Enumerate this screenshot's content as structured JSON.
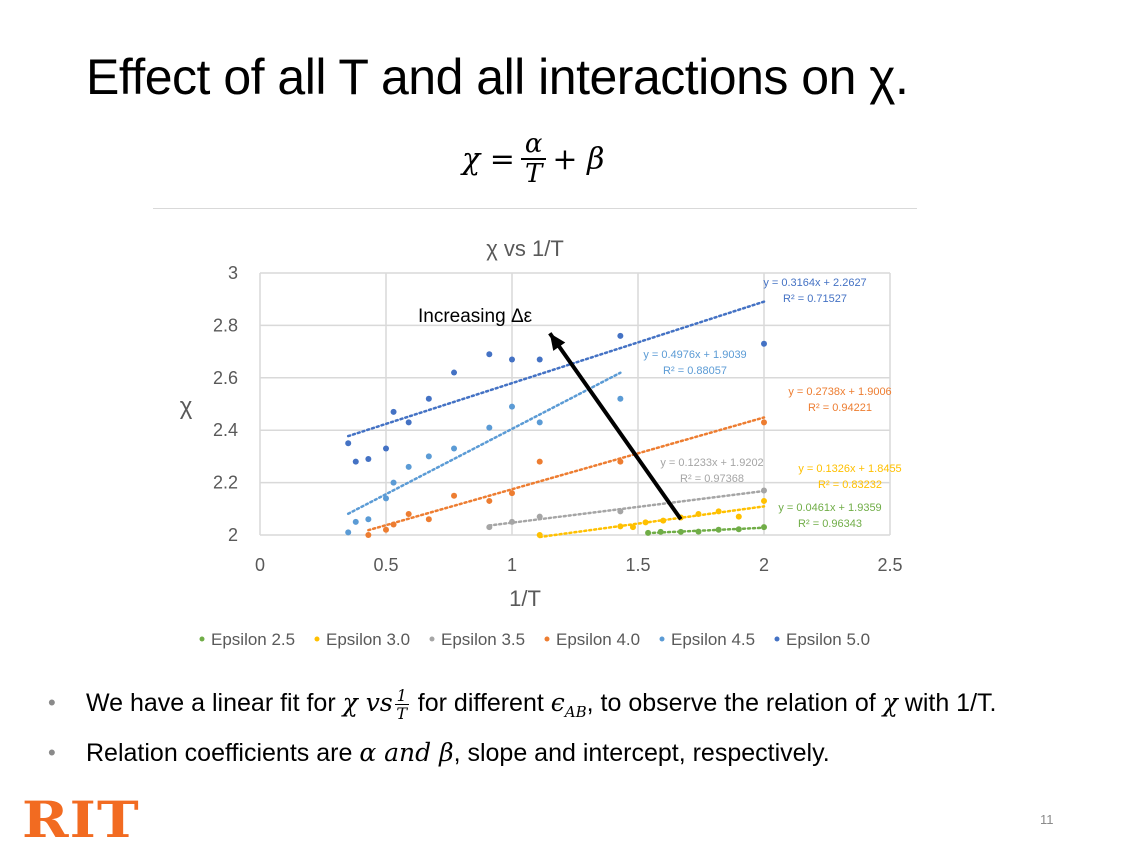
{
  "slide": {
    "title": "Effect of all T and all interactions on χ.",
    "formula": {
      "lhs": "χ =",
      "num": "α",
      "den": "T",
      "rhs": "+ β"
    },
    "page_number": "11",
    "logo_text": "RIT"
  },
  "bullets": [
    {
      "pre": "We have a linear fit for ",
      "m1": "χ vs",
      "fnum": "1",
      "fden": "T",
      "mid": " for different ",
      "m2": "ϵ",
      "m2sub": "AB",
      "post": ", to observe the relation of ",
      "m3": "χ",
      "end": " with 1/T."
    },
    {
      "pre": "Relation coefficients are ",
      "m1": "α and β",
      "post": ", slope and intercept, respectively."
    }
  ],
  "colors": {
    "eps25": "#70ad47",
    "eps30": "#ffc000",
    "eps35": "#a5a5a5",
    "eps40": "#ed7d31",
    "eps45": "#5b9bd5",
    "eps50": "#4472c4",
    "logo": "#f26b21"
  },
  "chart_data": {
    "type": "scatter",
    "title": "χ  vs   1/T",
    "xlabel": "1/T",
    "ylabel": "χ",
    "xlim": [
      0,
      2.5
    ],
    "ylim": [
      2,
      3
    ],
    "xticks": [
      "0",
      "0.5",
      "1",
      "1.5",
      "2",
      "2.5"
    ],
    "yticks": [
      "2",
      "2.2",
      "2.4",
      "2.6",
      "2.8",
      "3"
    ],
    "grid": true,
    "legend_position": "bottom",
    "annotation": {
      "text": "Increasing Δε",
      "arrow_from": [
        1.67,
        2.06
      ],
      "arrow_to": [
        1.15,
        2.77
      ]
    },
    "series": [
      {
        "name": "Epsilon 2.5",
        "color": "#70ad47",
        "points": [
          [
            1.54,
            2.008
          ],
          [
            1.59,
            2.012
          ],
          [
            1.67,
            2.012
          ],
          [
            1.74,
            2.013
          ],
          [
            1.82,
            2.02
          ],
          [
            1.9,
            2.022
          ],
          [
            2.0,
            2.03
          ]
        ],
        "trendline": {
          "equation": "y = 0.0461x + 1.9359",
          "r2": "R² = 0.96343",
          "range": [
            1.54,
            2.0
          ]
        }
      },
      {
        "name": "Epsilon 3.0",
        "color": "#ffc000",
        "points": [
          [
            1.11,
            2.0
          ],
          [
            1.43,
            2.033
          ],
          [
            1.48,
            2.03
          ],
          [
            1.53,
            2.048
          ],
          [
            1.6,
            2.055
          ],
          [
            1.67,
            2.067
          ],
          [
            1.74,
            2.08
          ],
          [
            1.82,
            2.09
          ],
          [
            1.9,
            2.07
          ],
          [
            2.0,
            2.13
          ]
        ],
        "trendline": {
          "equation": "y = 0.1326x + 1.8455",
          "r2": "R² = 0.83232",
          "range": [
            1.11,
            2.0
          ]
        }
      },
      {
        "name": "Epsilon 3.5",
        "color": "#a5a5a5",
        "points": [
          [
            0.91,
            2.03
          ],
          [
            1.0,
            2.05
          ],
          [
            1.11,
            2.07
          ],
          [
            1.43,
            2.09
          ],
          [
            2.0,
            2.17
          ]
        ],
        "trendline": {
          "equation": "y = 0.1233x + 1.9202",
          "r2": "R² = 0.97368",
          "range": [
            0.91,
            2.0
          ]
        }
      },
      {
        "name": "Epsilon 4.0",
        "color": "#ed7d31",
        "points": [
          [
            0.43,
            2.0
          ],
          [
            0.5,
            2.02
          ],
          [
            0.53,
            2.04
          ],
          [
            0.59,
            2.08
          ],
          [
            0.67,
            2.06
          ],
          [
            0.77,
            2.15
          ],
          [
            0.91,
            2.13
          ],
          [
            1.0,
            2.16
          ],
          [
            1.11,
            2.28
          ],
          [
            1.43,
            2.28
          ],
          [
            2.0,
            2.43
          ]
        ],
        "trendline": {
          "equation": "y = 0.2738x + 1.9006",
          "r2": "R² = 0.94221",
          "range": [
            0.43,
            2.0
          ]
        }
      },
      {
        "name": "Epsilon 4.5",
        "color": "#5b9bd5",
        "points": [
          [
            0.35,
            2.01
          ],
          [
            0.38,
            2.05
          ],
          [
            0.43,
            2.06
          ],
          [
            0.5,
            2.14
          ],
          [
            0.53,
            2.2
          ],
          [
            0.59,
            2.26
          ],
          [
            0.67,
            2.3
          ],
          [
            0.77,
            2.33
          ],
          [
            0.91,
            2.41
          ],
          [
            1.0,
            2.49
          ],
          [
            1.11,
            2.43
          ],
          [
            1.43,
            2.52
          ]
        ],
        "trendline": {
          "equation": "y = 0.4976x + 1.9039",
          "r2": "R² = 0.88057",
          "range": [
            0.35,
            1.43
          ]
        }
      },
      {
        "name": "Epsilon 5.0",
        "color": "#4472c4",
        "points": [
          [
            0.35,
            2.35
          ],
          [
            0.38,
            2.28
          ],
          [
            0.43,
            2.29
          ],
          [
            0.5,
            2.33
          ],
          [
            0.53,
            2.47
          ],
          [
            0.59,
            2.43
          ],
          [
            0.67,
            2.52
          ],
          [
            0.77,
            2.62
          ],
          [
            0.91,
            2.69
          ],
          [
            1.0,
            2.67
          ],
          [
            1.11,
            2.67
          ],
          [
            1.43,
            2.76
          ],
          [
            2.0,
            2.73
          ]
        ],
        "trendline": {
          "equation": "y = 0.3164x + 2.2627",
          "r2": "R² = 0.71527",
          "range": [
            0.35,
            2.0
          ]
        }
      }
    ]
  }
}
